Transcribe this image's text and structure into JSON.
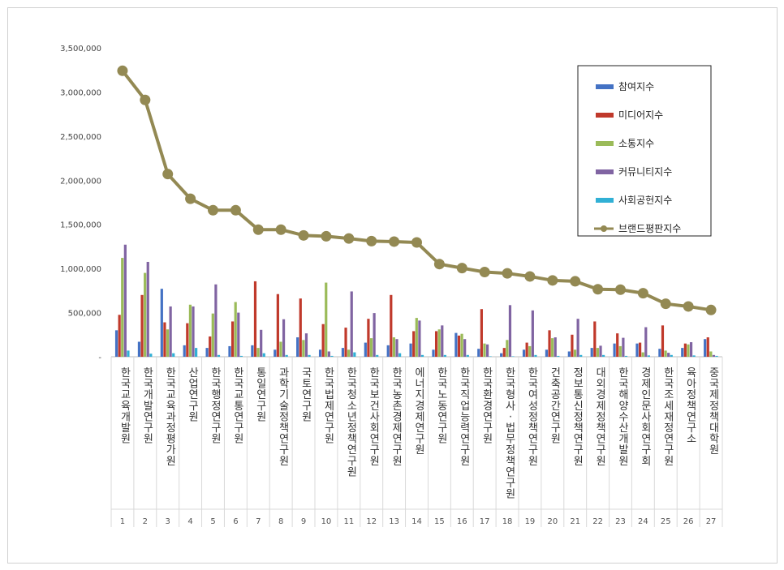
{
  "chart_data": {
    "type": "bar",
    "title": "",
    "xlabel": "",
    "ylabel": "",
    "ylim": [
      0,
      3500000
    ],
    "yticks": [
      0,
      500000,
      1000000,
      1500000,
      2000000,
      2500000,
      3000000,
      3500000
    ],
    "ytick_labels": [
      "-",
      "500,000",
      "1,000,000",
      "1,500,000",
      "2,000,000",
      "2,500,000",
      "3,000,000",
      "3,500,000"
    ],
    "grid": false,
    "legend_position": "top-right",
    "rank_labels": [
      "1",
      "2",
      "3",
      "4",
      "5",
      "6",
      "7",
      "8",
      "9",
      "10",
      "11",
      "12",
      "13",
      "14",
      "15",
      "16",
      "17",
      "18",
      "19",
      "20",
      "21",
      "22",
      "23",
      "24",
      "25",
      "26",
      "27"
    ],
    "categories": [
      "한국교육개발원",
      "한국개발연구원",
      "한국교육과정평가원",
      "산업연구원",
      "한국행정연구원",
      "한국교통연구원",
      "통일연구원",
      "과학기술정책연구원",
      "국토연구원",
      "한국법제연구원",
      "한국청소년정책연구원",
      "한국보건사회연구원",
      "한국농촌경제연구원",
      "에너지경제연구원",
      "한국노동연구원",
      "한국직업능력연구원",
      "한국환경연구원",
      "한국형사·법무정책연구원",
      "한국여성정책연구원",
      "건축공간연구원",
      "정보통신정책연구원",
      "대외경제정책연구원",
      "한국해양수산개발원",
      "경제인문사회연구회",
      "한국조세재정연구원",
      "육아정책연구소",
      "중국제정책대학원"
    ],
    "series": [
      {
        "name": "참여지수",
        "color": "#4472C4",
        "values": [
          300000,
          170000,
          770000,
          130000,
          100000,
          120000,
          130000,
          80000,
          220000,
          80000,
          100000,
          160000,
          130000,
          150000,
          80000,
          270000,
          90000,
          40000,
          80000,
          80000,
          60000,
          100000,
          150000,
          150000,
          90000,
          100000,
          200000
        ]
      },
      {
        "name": "미디어지수",
        "color": "#C0392B",
        "values": [
          475000,
          700000,
          390000,
          380000,
          230000,
          400000,
          855000,
          710000,
          660000,
          370000,
          330000,
          430000,
          700000,
          290000,
          290000,
          240000,
          540000,
          100000,
          160000,
          300000,
          250000,
          400000,
          265000,
          160000,
          355000,
          150000,
          220000
        ]
      },
      {
        "name": "소통지수",
        "color": "#9BBB59",
        "values": [
          1120000,
          950000,
          310000,
          590000,
          490000,
          620000,
          100000,
          170000,
          190000,
          840000,
          80000,
          210000,
          220000,
          440000,
          310000,
          260000,
          150000,
          190000,
          120000,
          210000,
          80000,
          100000,
          120000,
          50000,
          70000,
          140000,
          60000
        ]
      },
      {
        "name": "커뮤니티지수",
        "color": "#8064A2",
        "values": [
          1270000,
          1075000,
          570000,
          570000,
          820000,
          500000,
          305000,
          425000,
          265000,
          60000,
          740000,
          495000,
          200000,
          410000,
          355000,
          200000,
          140000,
          585000,
          525000,
          220000,
          430000,
          125000,
          215000,
          335000,
          45000,
          165000,
          20000
        ]
      },
      {
        "name": "사회공헌지수",
        "color": "#31B0D5",
        "values": [
          70000,
          35000,
          40000,
          100000,
          20000,
          10000,
          40000,
          20000,
          20000,
          10000,
          50000,
          20000,
          40000,
          20000,
          20000,
          20000,
          5000,
          5000,
          20000,
          10000,
          20000,
          20000,
          10000,
          15000,
          20000,
          15000,
          10000
        ]
      }
    ],
    "line_series": {
      "name": "브랜드평판지수",
      "color": "#938953",
      "values": [
        3240000,
        2910000,
        2070000,
        1790000,
        1660000,
        1660000,
        1440000,
        1440000,
        1375000,
        1365000,
        1340000,
        1310000,
        1305000,
        1295000,
        1050000,
        1005000,
        960000,
        945000,
        910000,
        865000,
        855000,
        765000,
        760000,
        720000,
        600000,
        570000,
        530000
      ]
    }
  }
}
